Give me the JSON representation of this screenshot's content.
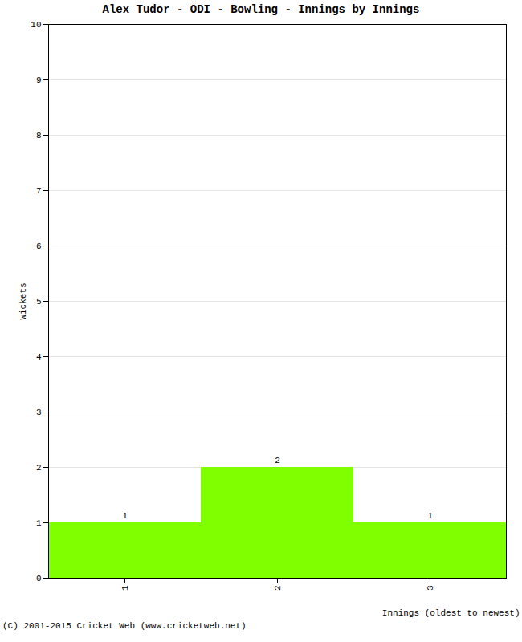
{
  "chart_data": {
    "type": "bar",
    "title": "Alex Tudor - ODI - Bowling - Innings by Innings",
    "x_label": "Innings (oldest to newest)",
    "y_label": "Wickets",
    "caption": "(C) 2001-2015 Cricket Web (www.cricketweb.net)",
    "categories": [
      "1",
      "2",
      "3"
    ],
    "values": [
      1,
      2,
      1
    ],
    "color": "#80ff00",
    "ylim": [
      0,
      10
    ],
    "yticks": [
      0,
      1,
      2,
      3,
      4,
      5,
      6,
      7,
      8,
      9,
      10
    ],
    "grid": true,
    "data_labels": true
  }
}
